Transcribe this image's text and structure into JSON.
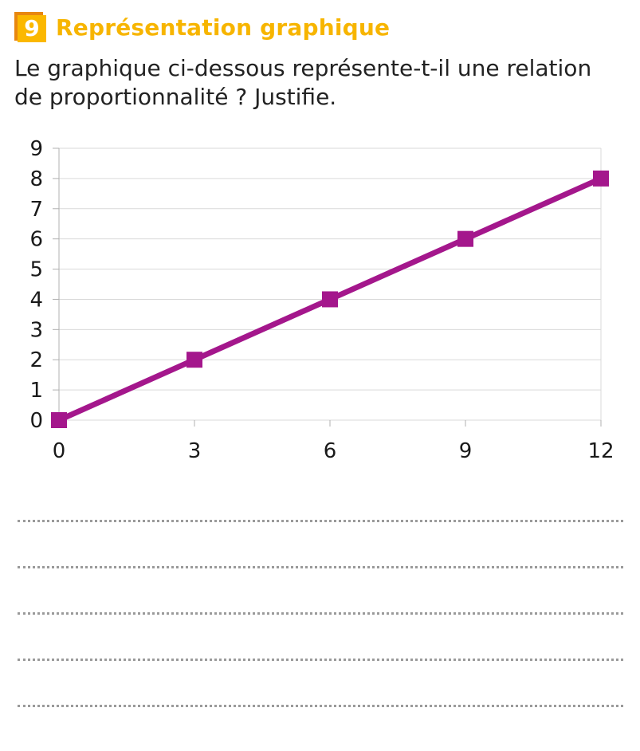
{
  "exercise": {
    "number": "9",
    "title": "Représentation graphique"
  },
  "question": {
    "line1": "Le graphique ci-dessous représente-t-il une relation",
    "line2": "de proportionnalité ? Justifie."
  },
  "colors": {
    "title": "#f7b500",
    "badge": "#fbb800",
    "badge_shadow": "#e8870f",
    "series": "#a4178c",
    "grid": "#d9d9d9"
  },
  "chart_data": {
    "type": "line",
    "title": "",
    "xlabel": "",
    "ylabel": "",
    "xlim": [
      0,
      12
    ],
    "ylim": [
      0,
      9
    ],
    "x_ticks": [
      0,
      3,
      6,
      9,
      12
    ],
    "y_ticks": [
      0,
      1,
      2,
      3,
      4,
      5,
      6,
      7,
      8,
      9
    ],
    "grid": "horizontal",
    "legend": "none",
    "series": [
      {
        "x": [
          0,
          3,
          6,
          9,
          12
        ],
        "y": [
          0,
          2,
          4,
          6,
          8
        ],
        "marker": "square"
      }
    ]
  },
  "answer_lines": 5
}
